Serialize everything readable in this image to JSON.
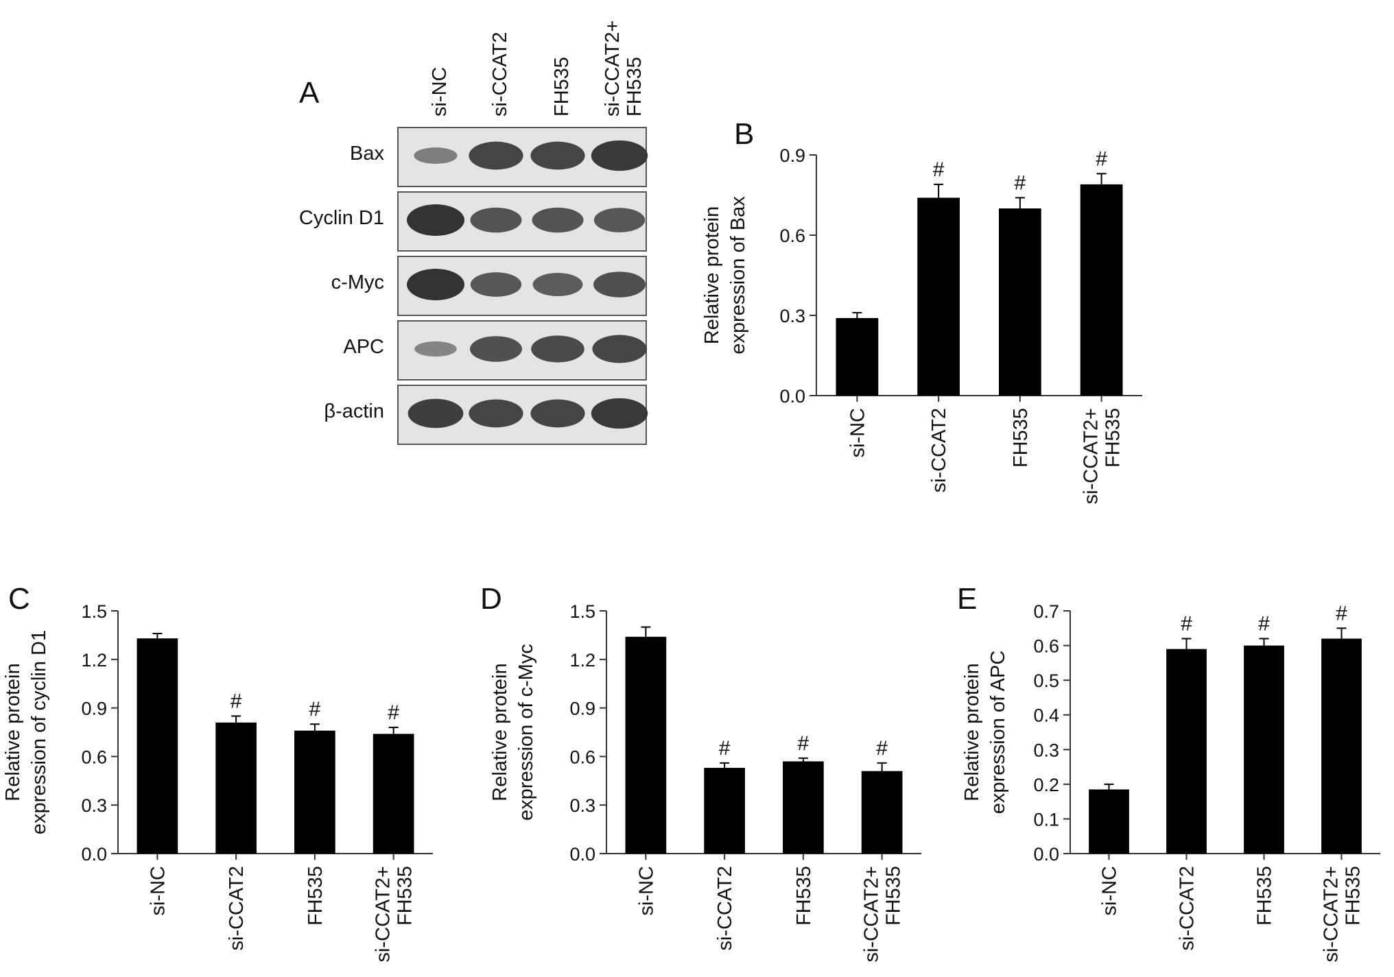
{
  "figure": {
    "blot": {
      "panel_label": "A",
      "lanes": [
        "si-NC",
        "si-CCAT2",
        "FH535",
        "si-CCAT2+ FH535"
      ],
      "proteins": [
        "Bax",
        "Cyclin D1",
        "c-Myc",
        "APC",
        "β-actin"
      ],
      "band_intensity": [
        [
          0.35,
          0.85,
          0.85,
          0.95
        ],
        [
          1.0,
          0.72,
          0.72,
          0.7
        ],
        [
          1.0,
          0.7,
          0.65,
          0.75
        ],
        [
          0.3,
          0.75,
          0.8,
          0.85
        ],
        [
          0.9,
          0.85,
          0.85,
          0.95
        ]
      ],
      "band_color": "#333333"
    },
    "bar_color": "#000000"
  },
  "chart_data": [
    {
      "panel_label": "B",
      "type": "bar",
      "categories": [
        "si-NC",
        "si-CCAT2",
        "FH535",
        "si-CCAT2+ FH535"
      ],
      "values": [
        0.29,
        0.74,
        0.7,
        0.79
      ],
      "errors": [
        0.02,
        0.05,
        0.04,
        0.04
      ],
      "annotations": [
        "",
        "#",
        "#",
        "#"
      ],
      "title": "",
      "xlabel": "",
      "ylabel": [
        "Relative protein",
        "expression of Bax"
      ],
      "ylim": [
        0,
        0.9
      ],
      "yticks": [
        "0.0",
        "0.3",
        "0.6",
        "0.9"
      ],
      "grid": false,
      "legend": "none"
    },
    {
      "panel_label": "C",
      "type": "bar",
      "categories": [
        "si-NC",
        "si-CCAT2",
        "FH535",
        "si-CCAT2+ FH535"
      ],
      "values": [
        1.33,
        0.81,
        0.76,
        0.74
      ],
      "errors": [
        0.03,
        0.04,
        0.04,
        0.04
      ],
      "annotations": [
        "",
        "#",
        "#",
        "#"
      ],
      "title": "",
      "xlabel": "",
      "ylabel": [
        "Relative protein",
        "expression of cyclin D1"
      ],
      "ylim": [
        0,
        1.5
      ],
      "yticks": [
        "0.0",
        "0.3",
        "0.6",
        "0.9",
        "1.2",
        "1.5"
      ],
      "grid": false,
      "legend": "none"
    },
    {
      "panel_label": "D",
      "type": "bar",
      "categories": [
        "si-NC",
        "si-CCAT2",
        "FH535",
        "si-CCAT2+ FH535"
      ],
      "values": [
        1.34,
        0.53,
        0.57,
        0.51
      ],
      "errors": [
        0.06,
        0.03,
        0.02,
        0.05
      ],
      "annotations": [
        "",
        "#",
        "#",
        "#"
      ],
      "title": "",
      "xlabel": "",
      "ylabel": [
        "Relative protein",
        "expression of c-Myc"
      ],
      "ylim": [
        0,
        1.5
      ],
      "yticks": [
        "0.0",
        "0.3",
        "0.6",
        "0.9",
        "1.2",
        "1.5"
      ],
      "grid": false,
      "legend": "none"
    },
    {
      "panel_label": "E",
      "type": "bar",
      "categories": [
        "si-NC",
        "si-CCAT2",
        "FH535",
        "si-CCAT2+ FH535"
      ],
      "values": [
        0.185,
        0.59,
        0.6,
        0.62
      ],
      "errors": [
        0.015,
        0.03,
        0.02,
        0.03
      ],
      "annotations": [
        "",
        "#",
        "#",
        "#"
      ],
      "title": "",
      "xlabel": "",
      "ylabel": [
        "Relative protein",
        "expression of APC"
      ],
      "ylim": [
        0,
        0.7
      ],
      "yticks": [
        "0.0",
        "0.1",
        "0.2",
        "0.3",
        "0.4",
        "0.5",
        "0.6",
        "0.7"
      ],
      "grid": false,
      "legend": "none"
    }
  ]
}
